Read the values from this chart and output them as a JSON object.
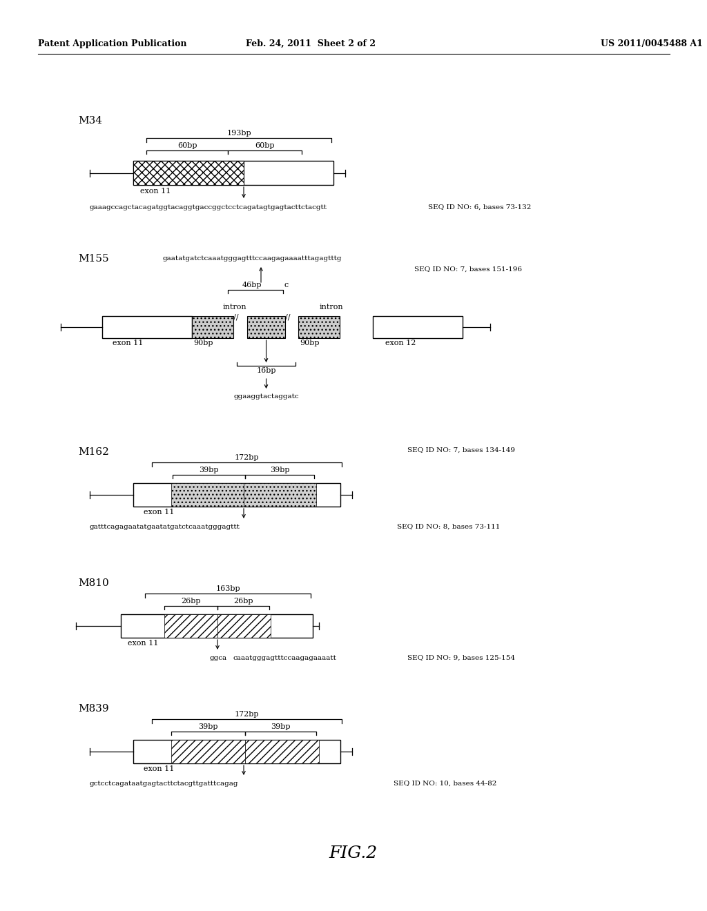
{
  "header_left": "Patent Application Publication",
  "header_center": "Feb. 24, 2011  Sheet 2 of 2",
  "header_right": "US 2011/0045488 A1",
  "figure_label": "FIG.2",
  "bg_color": "#ffffff"
}
